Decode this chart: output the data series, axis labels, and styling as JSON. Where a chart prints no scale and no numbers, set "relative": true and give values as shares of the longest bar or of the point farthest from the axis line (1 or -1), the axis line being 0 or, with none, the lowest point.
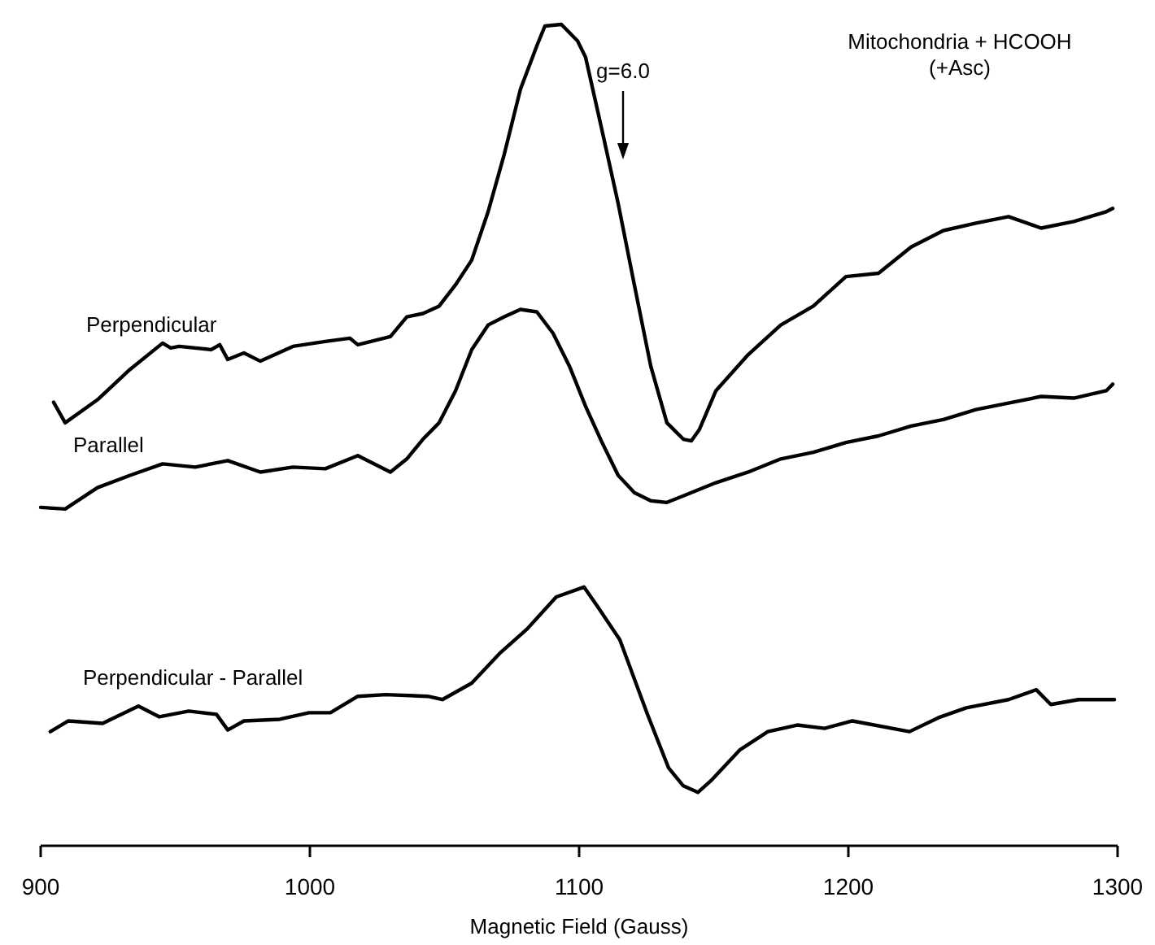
{
  "chart_data": {
    "type": "line",
    "relative": true,
    "title": "Mitochondria + HCOOH\n(+Asc)",
    "xlabel": "Magnetic Field (Gauss)",
    "xlim": [
      900,
      1300
    ],
    "xticks": [
      900,
      1000,
      1100,
      1200,
      1300
    ],
    "legend": false,
    "annotations": [
      "g=6.0"
    ],
    "series": [
      {
        "name": "Perpendicular",
        "color": "#000000",
        "x": [
          904.8,
          909.1,
          921.1,
          933.2,
          945.3,
          948.3,
          951.4,
          963.4,
          966.5,
          969.5,
          975.5,
          981.6,
          993.7,
          1005.7,
          1014.8,
          1017.8,
          1029.9,
          1036,
          1042,
          1048,
          1054.1,
          1060.1,
          1066.2,
          1072.2,
          1078.2,
          1084.3,
          1087.3,
          1093.4,
          1099.4,
          1102.4,
          1108.5,
          1114.5,
          1120.5,
          1126.6,
          1132.6,
          1138.7,
          1141.7,
          1144.7,
          1150.8,
          1162.8,
          1174.9,
          1187,
          1199.1,
          1211.2,
          1223.3,
          1235.3,
          1247.4,
          1259.5,
          1271.6,
          1283.7,
          1295.8,
          1298.2
        ],
        "values": [
          0.54,
          0.515,
          0.543,
          0.58,
          0.612,
          0.606,
          0.608,
          0.604,
          0.61,
          0.592,
          0.6,
          0.59,
          0.608,
          0.614,
          0.618,
          0.61,
          0.62,
          0.644,
          0.648,
          0.657,
          0.683,
          0.713,
          0.772,
          0.842,
          0.921,
          0.974,
          0.998,
          1,
          0.98,
          0.96,
          0.871,
          0.782,
          0.683,
          0.584,
          0.515,
          0.495,
          0.493,
          0.507,
          0.554,
          0.598,
          0.634,
          0.657,
          0.693,
          0.697,
          0.729,
          0.749,
          0.758,
          0.766,
          0.752,
          0.76,
          0.772,
          0.776
        ]
      },
      {
        "name": "Parallel",
        "color": "#000000",
        "x": [
          900,
          909.1,
          921.1,
          933.2,
          945.3,
          957.4,
          969.5,
          981.6,
          993.7,
          1005.7,
          1017.8,
          1029.9,
          1036,
          1042,
          1048,
          1054.1,
          1060.1,
          1066.2,
          1072.2,
          1078.2,
          1084.3,
          1090.3,
          1096.4,
          1102.4,
          1108.5,
          1114.5,
          1120.5,
          1126.6,
          1132.6,
          1138.7,
          1150.8,
          1162.8,
          1174.9,
          1187,
          1199.1,
          1211.2,
          1223.3,
          1235.3,
          1247.4,
          1259.5,
          1271.6,
          1283.7,
          1295.8,
          1298.2
        ],
        "values": [
          0.412,
          0.41,
          0.436,
          0.451,
          0.465,
          0.461,
          0.469,
          0.455,
          0.461,
          0.459,
          0.475,
          0.455,
          0.471,
          0.495,
          0.515,
          0.554,
          0.604,
          0.634,
          0.644,
          0.653,
          0.65,
          0.624,
          0.584,
          0.535,
          0.491,
          0.451,
          0.43,
          0.42,
          0.418,
          0.426,
          0.442,
          0.455,
          0.471,
          0.479,
          0.491,
          0.499,
          0.511,
          0.519,
          0.531,
          0.539,
          0.547,
          0.545,
          0.554,
          0.562
        ]
      },
      {
        "name": "Perpendicular - Parallel",
        "color": "#000000",
        "x": [
          903.6,
          910.3,
          923,
          936.3,
          944.1,
          955,
          965.3,
          969.5,
          975.5,
          988.8,
          999.7,
          1007.6,
          1017.8,
          1028.1,
          1043.8,
          1049.2,
          1060.1,
          1070.4,
          1080.7,
          1091.5,
          1101.8,
          1107.3,
          1115.1,
          1125.4,
          1133.2,
          1138.7,
          1144.1,
          1148.9,
          1159.8,
          1170.1,
          1181,
          1191.2,
          1201.5,
          1222.7,
          1233.5,
          1243.8,
          1259.5,
          1269.8,
          1275.2,
          1285.5,
          1298.8
        ],
        "values": [
          0.139,
          0.152,
          0.149,
          0.17,
          0.157,
          0.164,
          0.16,
          0.141,
          0.152,
          0.154,
          0.162,
          0.162,
          0.182,
          0.184,
          0.182,
          0.178,
          0.198,
          0.234,
          0.264,
          0.303,
          0.315,
          0.289,
          0.251,
          0.16,
          0.095,
          0.073,
          0.065,
          0.079,
          0.117,
          0.139,
          0.147,
          0.143,
          0.152,
          0.139,
          0.156,
          0.168,
          0.178,
          0.19,
          0.172,
          0.178,
          0.178
        ]
      }
    ]
  }
}
